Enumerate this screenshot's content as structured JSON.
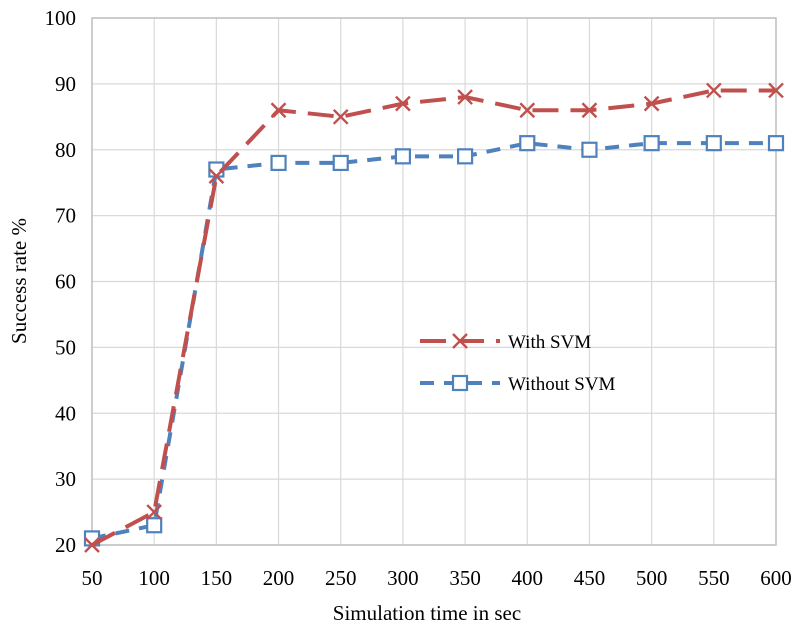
{
  "chart_data": {
    "type": "line",
    "xlabel": "Simulation time in sec",
    "ylabel": "Success rate %",
    "x": [
      50,
      100,
      150,
      200,
      250,
      300,
      350,
      400,
      450,
      500,
      550,
      600
    ],
    "xlim": [
      50,
      600
    ],
    "ylim": [
      20,
      100
    ],
    "yticks": [
      20,
      30,
      40,
      50,
      60,
      70,
      80,
      90,
      100
    ],
    "grid": true,
    "legend_position": "right-center",
    "series": [
      {
        "name": "With SVM",
        "values": [
          20,
          25,
          76,
          86,
          85,
          87,
          88,
          86,
          86,
          87,
          89,
          89
        ],
        "color": "#c0504d",
        "marker": "x",
        "line_style": "long-dash"
      },
      {
        "name": "Without SVM",
        "values": [
          21,
          23,
          77,
          78,
          78,
          79,
          79,
          81,
          80,
          81,
          81,
          81
        ],
        "color": "#4f81bd",
        "marker": "square",
        "line_style": "dash"
      }
    ]
  }
}
